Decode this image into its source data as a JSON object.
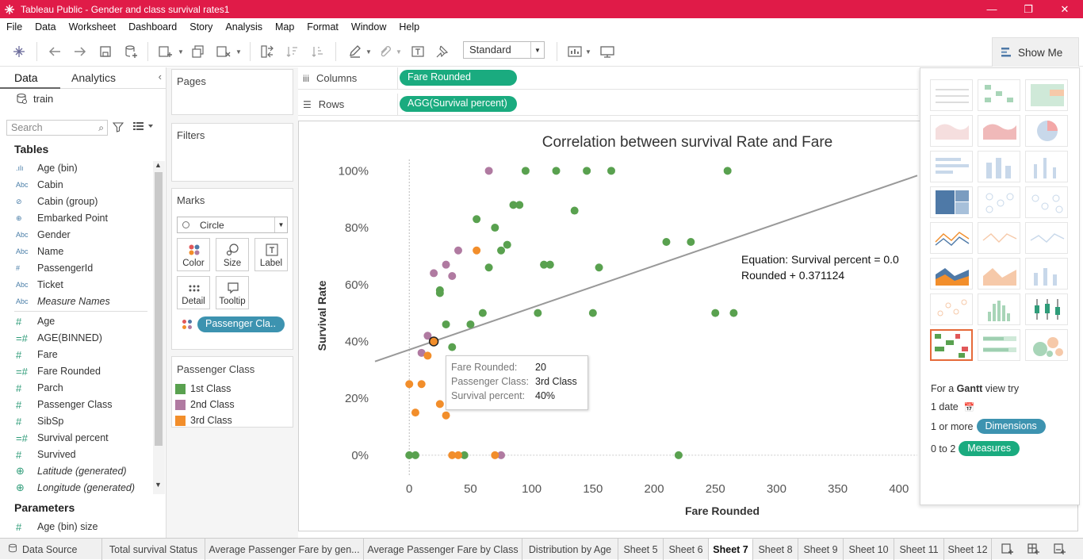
{
  "window": {
    "title": "Tableau Public - Gender and class survival rates1",
    "minimize": "—",
    "restore": "❐",
    "close": "✕"
  },
  "menu": [
    "File",
    "Data",
    "Worksheet",
    "Dashboard",
    "Story",
    "Analysis",
    "Map",
    "Format",
    "Window",
    "Help"
  ],
  "toolbar": {
    "fit_select": "Standard",
    "show_me_label": "Show Me"
  },
  "data_pane": {
    "tabs": [
      "Data",
      "Analytics"
    ],
    "data_source": "train",
    "search_placeholder": "Search",
    "tables_header": "Tables",
    "dimensions": [
      {
        "type": "bin",
        "type_label": ".ılı",
        "name": "Age (bin)"
      },
      {
        "type": "abc",
        "type_label": "Abc",
        "name": "Cabin"
      },
      {
        "type": "group",
        "type_label": "⊘",
        "name": "Cabin (group)"
      },
      {
        "type": "geo",
        "type_label": "⊕",
        "name": "Embarked Point"
      },
      {
        "type": "abc",
        "type_label": "Abc",
        "name": "Gender"
      },
      {
        "type": "abc",
        "type_label": "Abc",
        "name": "Name"
      },
      {
        "type": "num",
        "type_label": "#",
        "name": "PassengerId"
      },
      {
        "type": "abc",
        "type_label": "Abc",
        "name": "Ticket"
      },
      {
        "type": "abc",
        "type_label": "Abc",
        "name": "Measure Names",
        "italic": true
      }
    ],
    "measures": [
      {
        "type": "num",
        "type_label": "#",
        "name": "Age"
      },
      {
        "type": "calc",
        "type_label": "=#",
        "name": "AGE(BINNED)"
      },
      {
        "type": "num",
        "type_label": "#",
        "name": "Fare"
      },
      {
        "type": "calc",
        "type_label": "=#",
        "name": "Fare Rounded"
      },
      {
        "type": "num",
        "type_label": "#",
        "name": "Parch"
      },
      {
        "type": "num",
        "type_label": "#",
        "name": "Passenger Class"
      },
      {
        "type": "num",
        "type_label": "#",
        "name": "SibSp"
      },
      {
        "type": "calc",
        "type_label": "=#",
        "name": "Survival percent"
      },
      {
        "type": "num",
        "type_label": "#",
        "name": "Survived"
      },
      {
        "type": "geo",
        "type_label": "⊕",
        "name": "Latitude (generated)",
        "italic": true
      },
      {
        "type": "geo",
        "type_label": "⊕",
        "name": "Longitude (generated)",
        "italic": true
      }
    ],
    "parameters_header": "Parameters",
    "parameters": [
      {
        "type": "num",
        "type_label": "#",
        "name": "Age (bin) size"
      }
    ]
  },
  "cards": {
    "pages": "Pages",
    "filters": "Filters",
    "marks": "Marks",
    "mark_type": "Circle",
    "mark_buttons": [
      "Color",
      "Size",
      "Label",
      "Detail",
      "Tooltip"
    ],
    "color_pill": "Passenger Cla..",
    "legend_title": "Passenger Class",
    "legend": [
      {
        "label": "1st Class",
        "color": "#59a14f"
      },
      {
        "label": "2nd Class",
        "color": "#b07aa1"
      },
      {
        "label": "3rd Class",
        "color": "#f28e2b"
      }
    ]
  },
  "shelves": {
    "columns_label": "Columns",
    "columns_pill": "Fare Rounded",
    "rows_label": "Rows",
    "rows_pill": "AGG(Survival percent)"
  },
  "chart_data": {
    "type": "scatter",
    "title": "Correlation between survival Rate and Fare",
    "xlabel": "Fare Rounded",
    "ylabel": "Survival Rate",
    "x_ticks": [
      0,
      50,
      100,
      150,
      200,
      250,
      300,
      350,
      400
    ],
    "y_ticks": [
      "0%",
      "20%",
      "40%",
      "60%",
      "80%",
      "100%"
    ],
    "y_tick_values": [
      0,
      20,
      40,
      60,
      80,
      100
    ],
    "xlim": [
      -28,
      415
    ],
    "ylim": [
      -7,
      104
    ],
    "trend_line": {
      "equation_line1": "Equation:  Survival percent = 0.0",
      "equation_line2": "Rounded + 0.371124",
      "intercept": 37.1124,
      "slope": 0.1475
    },
    "series": [
      {
        "name": "1st Class",
        "color": "#59a14f",
        "points": [
          [
            0,
            0
          ],
          [
            5,
            0
          ],
          [
            45,
            0
          ],
          [
            220,
            0
          ],
          [
            35,
            38
          ],
          [
            30,
            46
          ],
          [
            50,
            46
          ],
          [
            60,
            50
          ],
          [
            25,
            58
          ],
          [
            25,
            57
          ],
          [
            65,
            66
          ],
          [
            55,
            83
          ],
          [
            70,
            80
          ],
          [
            75,
            72
          ],
          [
            80,
            74
          ],
          [
            85,
            88
          ],
          [
            90,
            88
          ],
          [
            95,
            100
          ],
          [
            120,
            100
          ],
          [
            145,
            100
          ],
          [
            165,
            100
          ],
          [
            260,
            100
          ],
          [
            135,
            86
          ],
          [
            105,
            50
          ],
          [
            110,
            67
          ],
          [
            115,
            67
          ],
          [
            150,
            50
          ],
          [
            155,
            66
          ],
          [
            210,
            75
          ],
          [
            230,
            75
          ],
          [
            250,
            50
          ],
          [
            265,
            50
          ]
        ]
      },
      {
        "name": "2nd Class",
        "color": "#b07aa1",
        "points": [
          [
            10,
            36
          ],
          [
            15,
            42
          ],
          [
            20,
            64
          ],
          [
            30,
            67
          ],
          [
            35,
            63
          ],
          [
            40,
            72
          ],
          [
            65,
            100
          ],
          [
            75,
            0
          ]
        ]
      },
      {
        "name": "3rd Class",
        "color": "#f28e2b",
        "points": [
          [
            0,
            25
          ],
          [
            5,
            15
          ],
          [
            10,
            25
          ],
          [
            15,
            35
          ],
          [
            20,
            40
          ],
          [
            25,
            18
          ],
          [
            30,
            14
          ],
          [
            35,
            0
          ],
          [
            40,
            0
          ],
          [
            70,
            0
          ],
          [
            55,
            72
          ]
        ]
      }
    ],
    "highlight_point": [
      20,
      40
    ]
  },
  "tooltip": {
    "rows": [
      {
        "key": "Fare Rounded:",
        "value": "20"
      },
      {
        "key": "Passenger Class:",
        "value": "3rd Class"
      },
      {
        "key": "Survival percent:",
        "value": "40%"
      }
    ]
  },
  "show_me": {
    "hint_prefix": "For a",
    "hint_chart": "Gantt",
    "hint_suffix": "view try",
    "req_date": "1 date",
    "req_dims_prefix": "1 or more",
    "req_dims_pill": "Dimensions",
    "req_meas_prefix": "0 to 2",
    "req_meas_pill": "Measures"
  },
  "sheet_tabs": [
    "Data Source",
    "Total survival Status",
    "Average Passenger Fare by gen...",
    "Average Passenger Fare by Class",
    "Distribution by Age",
    "Sheet 5",
    "Sheet 6",
    "Sheet 7",
    "Sheet 8",
    "Sheet 9",
    "Sheet 10",
    "Sheet 11",
    "Sheet 12"
  ],
  "active_tab": "Sheet 7"
}
